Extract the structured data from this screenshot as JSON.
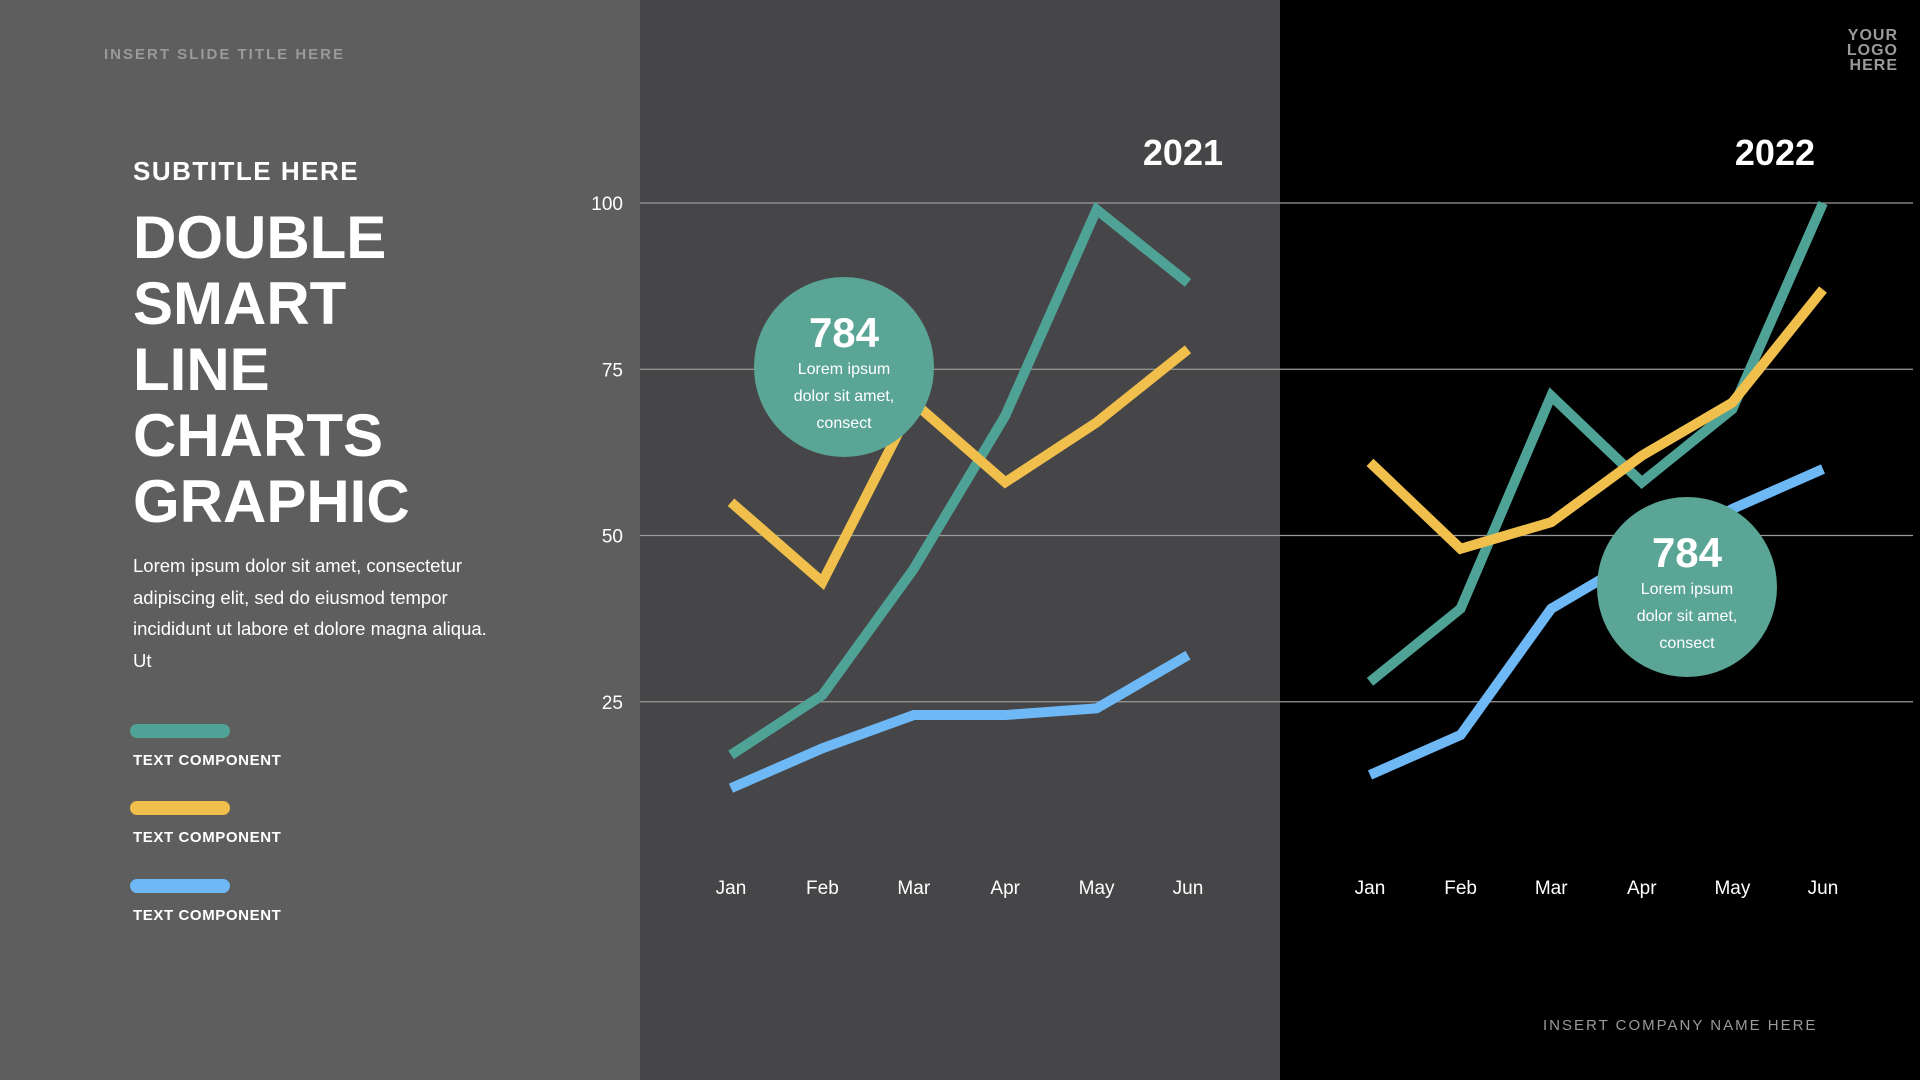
{
  "header": {
    "slide_title": "INSERT SLIDE TITLE HERE"
  },
  "logo": {
    "lines": [
      "YOUR",
      "LOGO",
      "HERE"
    ]
  },
  "left": {
    "subtitle": "SUBTITLE HERE",
    "title_lines": [
      "DOUBLE",
      "SMART",
      "LINE",
      "CHARTS",
      "GRAPHIC"
    ],
    "body": "Lorem ipsum dolor sit amet, consectetur adipiscing elit, sed do eiusmod tempor incididunt ut labore et dolore magna aliqua. Ut"
  },
  "legend": [
    {
      "label": "TEXT COMPONENT",
      "color": "#4fa296"
    },
    {
      "label": "TEXT COMPONENT",
      "color": "#f0bf4c"
    },
    {
      "label": "TEXT COMPONENT",
      "color": "#6fb8f6"
    }
  ],
  "footer": {
    "company": "INSERT COMPANY NAME HERE"
  },
  "colors": {
    "teal": "#4fa296",
    "yellow": "#f0bf4c",
    "blue": "#6fb8f6",
    "grid": "#9a9a9a",
    "callout": "#5aa596"
  },
  "chart_data": [
    {
      "type": "line",
      "title": "2021",
      "categories": [
        "Jan",
        "Feb",
        "Mar",
        "Apr",
        "May",
        "Jun"
      ],
      "ylim": [
        0,
        100
      ],
      "yticks": [
        25,
        50,
        75,
        100
      ],
      "grid": true,
      "series": [
        {
          "color": "#4fa296",
          "values": [
            17,
            26,
            45,
            68,
            99,
            88
          ]
        },
        {
          "color": "#f0bf4c",
          "values": [
            55,
            43,
            70,
            58,
            67,
            78
          ]
        },
        {
          "color": "#6fb8f6",
          "values": [
            12,
            18,
            23,
            23,
            24,
            32
          ]
        }
      ],
      "callout": {
        "value": "784",
        "lines": [
          "Lorem ipsum",
          "dolor sit amet,",
          "consect"
        ]
      }
    },
    {
      "type": "line",
      "title": "2022",
      "categories": [
        "Jan",
        "Feb",
        "Mar",
        "Apr",
        "May",
        "Jun"
      ],
      "ylim": [
        0,
        100
      ],
      "yticks": [
        25,
        50,
        75,
        100
      ],
      "grid": true,
      "series": [
        {
          "color": "#4fa296",
          "values": [
            28,
            39,
            71,
            58,
            69,
            100
          ]
        },
        {
          "color": "#f0bf4c",
          "values": [
            61,
            48,
            52,
            62,
            70,
            87
          ]
        },
        {
          "color": "#6fb8f6",
          "values": [
            14,
            20,
            39,
            47,
            54,
            60
          ]
        }
      ],
      "callout": {
        "value": "784",
        "lines": [
          "Lorem ipsum",
          "dolor sit amet,",
          "consect"
        ]
      }
    }
  ]
}
